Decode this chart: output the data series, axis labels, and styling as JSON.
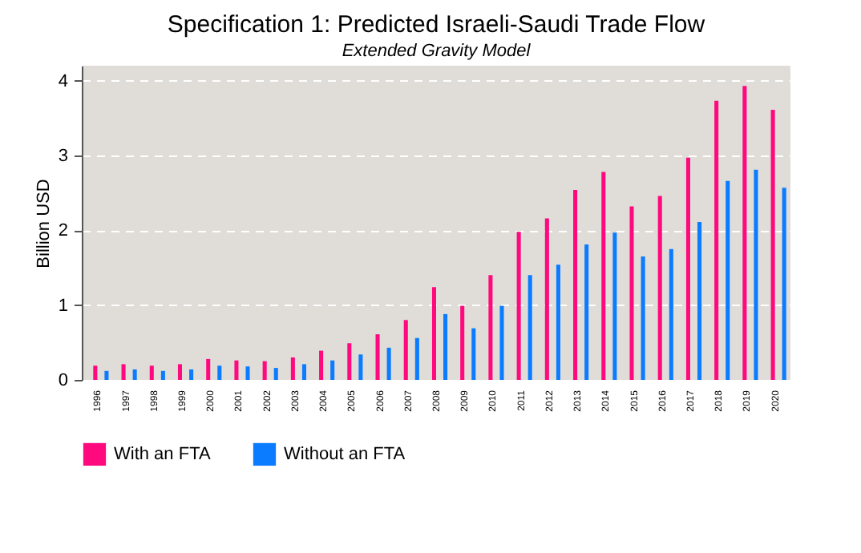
{
  "chart_data": {
    "type": "bar",
    "title": "Specification 1: Predicted Israeli-Saudi Trade Flow",
    "subtitle": "Extended Gravity Model",
    "ylabel": "Billion USD",
    "categories": [
      "1996",
      "1997",
      "1998",
      "1999",
      "2000",
      "2001",
      "2002",
      "2003",
      "2004",
      "2005",
      "2006",
      "2007",
      "2008",
      "2009",
      "2010",
      "2011",
      "2012",
      "2013",
      "2014",
      "2015",
      "2016",
      "2017",
      "2018",
      "2019",
      "2020"
    ],
    "series": [
      {
        "name": "With an FTA",
        "color": "#ff0a7e",
        "values": [
          0.19,
          0.21,
          0.19,
          0.21,
          0.28,
          0.26,
          0.25,
          0.3,
          0.39,
          0.49,
          0.61,
          0.8,
          1.24,
          0.99,
          1.4,
          1.98,
          2.16,
          2.54,
          2.78,
          2.32,
          2.46,
          2.97,
          3.73,
          3.93,
          3.61
        ]
      },
      {
        "name": "Without an FTA",
        "color": "#0b7cff",
        "values": [
          0.12,
          0.14,
          0.12,
          0.14,
          0.19,
          0.18,
          0.16,
          0.21,
          0.26,
          0.34,
          0.43,
          0.56,
          0.88,
          0.69,
          0.99,
          1.4,
          1.54,
          1.81,
          1.97,
          1.65,
          1.75,
          2.11,
          2.66,
          2.81,
          2.57
        ]
      }
    ],
    "ylim": [
      0,
      4.2
    ],
    "yticks": [
      0,
      1,
      2,
      3,
      4
    ],
    "grid": "y",
    "legend": "bottom"
  }
}
